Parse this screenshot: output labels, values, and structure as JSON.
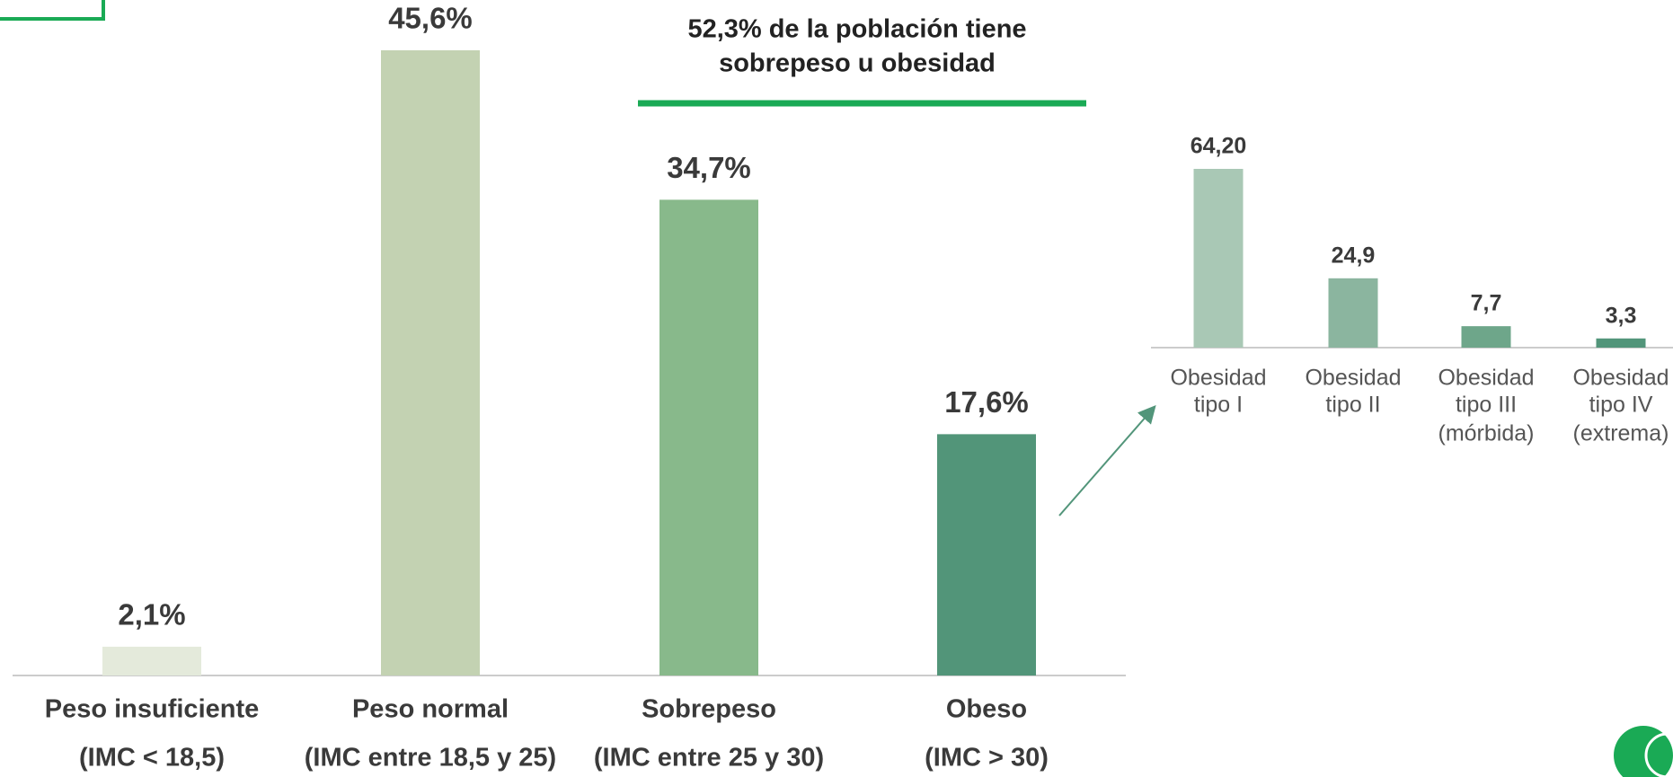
{
  "chart_data": [
    {
      "type": "bar",
      "annotation": [
        "52,3% de la población tiene",
        "sobrepeso u obesidad"
      ],
      "categories": [
        [
          "Peso insuficiente",
          "(IMC < 18,5)"
        ],
        [
          "Peso normal",
          "(IMC entre 18,5 y 25)"
        ],
        [
          "Sobrepeso",
          "(IMC entre 25 y 30)"
        ],
        [
          "Obeso",
          "(IMC > 30)"
        ]
      ],
      "values": [
        2.1,
        45.6,
        34.7,
        17.6
      ],
      "value_labels": [
        "2,1%",
        "45,6%",
        "34,7%",
        "17,6%"
      ],
      "colors": [
        "#e4eadb",
        "#c3d2b2",
        "#88b98b",
        "#529579"
      ]
    },
    {
      "type": "bar",
      "categories": [
        [
          "Obesidad",
          "tipo I"
        ],
        [
          "Obesidad",
          "tipo II"
        ],
        [
          "Obesidad",
          "tipo III",
          "(mórbida)"
        ],
        [
          "Obesidad",
          "tipo IV",
          "(extrema)"
        ]
      ],
      "values": [
        64.2,
        24.9,
        7.7,
        3.3
      ],
      "value_labels": [
        "64,20",
        "24,9",
        "7,7",
        "3,3"
      ],
      "colors": [
        "#a9c8b5",
        "#8bb59f",
        "#6ea68a",
        "#52957a"
      ]
    }
  ]
}
